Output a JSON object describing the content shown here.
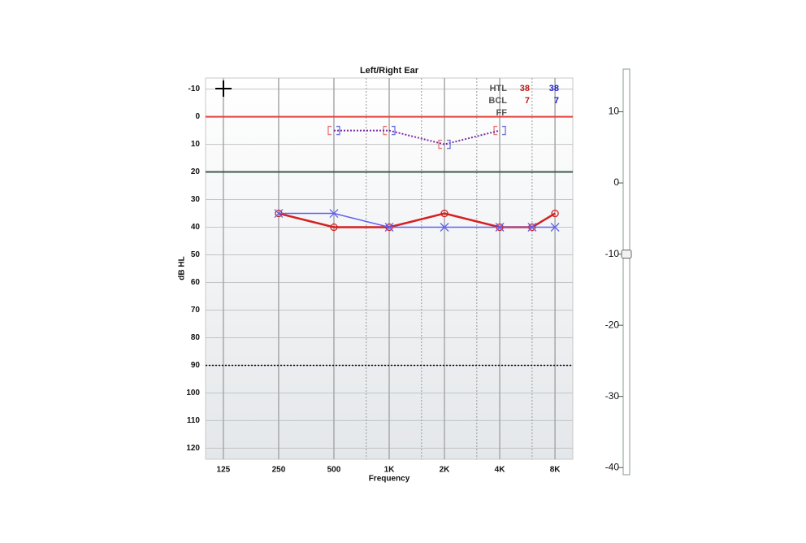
{
  "chart_data": [
    {
      "type": "line",
      "title": "Left/Right Ear",
      "x_label": "Frequency",
      "y_label": "dB HL",
      "log_x": true,
      "xlim": [
        100,
        10000
      ],
      "xticks": [
        125,
        250,
        500,
        {
          "value": 1000,
          "label": "1K"
        },
        {
          "value": 2000,
          "label": "2K"
        },
        {
          "value": 4000,
          "label": "4K"
        },
        {
          "value": 8000,
          "label": "8K"
        }
      ],
      "minor_xticks": [
        750,
        1500,
        3000,
        6000
      ],
      "ylim": [
        -14,
        124
      ],
      "yticks": [
        -10,
        0,
        10,
        20,
        30,
        40,
        50,
        60,
        70,
        80,
        90,
        100,
        110,
        120
      ],
      "grid": true,
      "reference_lines": [
        {
          "value": 0,
          "color": "#e8413c",
          "style": "solid"
        },
        {
          "value": 20,
          "color": "#3d5a4a",
          "style": "solid"
        },
        {
          "value": 90,
          "color": "#111111",
          "style": "dotted"
        }
      ],
      "series": [
        {
          "color": "#d42020",
          "marker": "circle",
          "line": "solid",
          "x": [
            250,
            500,
            1000,
            2000,
            4000,
            6000,
            8000
          ],
          "values": [
            35,
            40,
            40,
            35,
            40,
            40,
            35
          ]
        },
        {
          "color": "#6060f0",
          "marker": "cross",
          "line": "solid",
          "x": [
            250,
            500,
            1000,
            2000,
            4000,
            6000,
            8000
          ],
          "values": [
            35,
            35,
            40,
            40,
            40,
            40,
            40
          ]
        },
        {
          "color": "#e87878",
          "marker": "bracket-left",
          "line": "none",
          "x": [
            500,
            1000,
            2000,
            4000
          ],
          "values": [
            5,
            5,
            10,
            5
          ]
        },
        {
          "color": "#7070e0",
          "marker": "bracket-right",
          "line": "dotted",
          "x": [
            500,
            1000,
            2000,
            4000
          ],
          "values": [
            5,
            5,
            10,
            5
          ]
        }
      ],
      "summary": {
        "labels": [
          "HTL",
          "BCL",
          "FF"
        ],
        "right": [
          38,
          7
        ],
        "left": [
          38,
          7
        ],
        "right_color": "#c01818",
        "left_color": "#1a1ad0"
      }
    },
    {
      "type": "slider",
      "ylim": [
        -41,
        16
      ],
      "yticks": [
        10,
        0,
        -10,
        -20,
        -30,
        -40
      ],
      "value": -10
    }
  ]
}
